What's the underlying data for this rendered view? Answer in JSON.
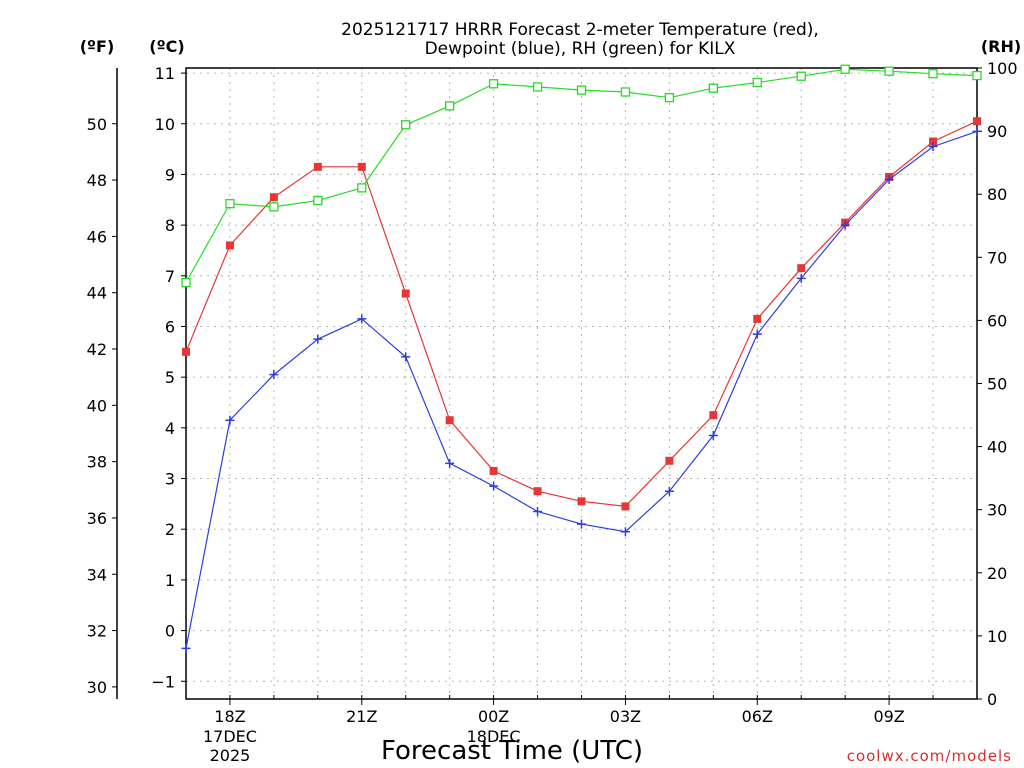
{
  "chart_data": {
    "type": "line",
    "title_line1": "2025121717 HRRR Forecast 2-meter Temperature (red),",
    "title_line2": "Dewpoint (blue), RH (green) for KILX",
    "xlabel": "Forecast Time (UTC)",
    "credit": "coolwx.com/models",
    "axes": {
      "fahrenheit": {
        "label": "(ºF)",
        "ticks": [
          30,
          32,
          34,
          36,
          38,
          40,
          42,
          44,
          46,
          48,
          50
        ]
      },
      "celsius": {
        "label": "(ºC)",
        "ylim": [
          -1.35,
          11.1
        ],
        "ticks": [
          -1,
          0,
          1,
          2,
          3,
          4,
          5,
          6,
          7,
          8,
          9,
          10,
          11
        ]
      },
      "rh": {
        "label": "(RH)",
        "ylim": [
          0,
          100
        ],
        "ticks": [
          0,
          10,
          20,
          30,
          40,
          50,
          60,
          70,
          80,
          90,
          100
        ]
      }
    },
    "x_hours": [
      17,
      18,
      19,
      20,
      21,
      22,
      23,
      24,
      25,
      26,
      27,
      28,
      29,
      30,
      31,
      32,
      33,
      34,
      35
    ],
    "x_range": [
      17,
      35
    ],
    "x_ticks": [
      {
        "hour": 18,
        "label": "18Z",
        "sub1": "17DEC",
        "sub2": "2025"
      },
      {
        "hour": 21,
        "label": "21Z"
      },
      {
        "hour": 24,
        "label": "00Z",
        "sub1": "18DEC"
      },
      {
        "hour": 27,
        "label": "03Z"
      },
      {
        "hour": 30,
        "label": "06Z"
      },
      {
        "hour": 33,
        "label": "09Z"
      }
    ],
    "series": [
      {
        "name": "Temperature",
        "color": "#e83535",
        "marker": "filled-square",
        "axis": "celsius",
        "values": [
          5.5,
          7.6,
          8.55,
          9.15,
          9.15,
          6.65,
          4.15,
          3.15,
          2.75,
          2.55,
          2.45,
          3.35,
          4.25,
          6.15,
          7.15,
          8.05,
          8.95,
          9.65,
          10.05
        ]
      },
      {
        "name": "Dewpoint",
        "color": "#2c3ee0",
        "marker": "plus",
        "axis": "celsius",
        "values": [
          -0.35,
          4.15,
          5.05,
          5.75,
          6.15,
          5.4,
          3.3,
          2.85,
          2.35,
          2.1,
          1.95,
          2.75,
          3.85,
          5.85,
          6.95,
          8.0,
          8.9,
          9.55,
          9.85
        ]
      },
      {
        "name": "RH",
        "color": "#22dd22",
        "marker": "open-square",
        "axis": "rh",
        "values": [
          66,
          78.5,
          78,
          79,
          81,
          91,
          94,
          97.5,
          97,
          96.5,
          96.2,
          95.3,
          96.8,
          97.7,
          98.7,
          99.8,
          99.5,
          99.1,
          98.8
        ]
      }
    ]
  }
}
